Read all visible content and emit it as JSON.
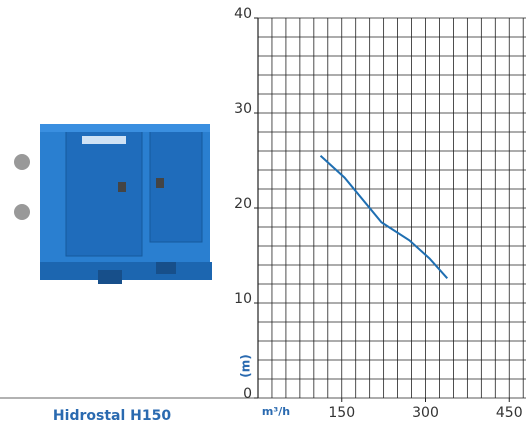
{
  "chart_data": {
    "type": "line",
    "title": "Hidrostal H150",
    "y_label": "(m)",
    "x_label": "m³/h",
    "x": [
      112,
      155,
      221,
      271,
      307,
      339
    ],
    "series": [
      {
        "name": "H150",
        "color": "#1f6fb2",
        "values": [
          25.5,
          23.2,
          18.5,
          16.6,
          14.7,
          12.6
        ]
      }
    ],
    "xlim": [
      0,
      480
    ],
    "ylim": [
      0,
      40
    ],
    "xticks": [
      150,
      300,
      450
    ],
    "yticks": [
      0,
      10,
      20,
      30,
      40
    ],
    "minor_xticks": [
      0,
      25,
      50,
      75,
      100,
      125,
      150,
      175,
      200,
      225,
      250,
      275,
      300,
      325,
      350,
      375,
      400,
      425,
      450,
      475
    ],
    "minor_yticks": [
      0,
      2,
      4,
      6,
      8,
      10,
      12,
      14,
      16,
      18,
      20,
      22,
      24,
      26,
      28,
      30,
      32,
      34,
      36,
      38,
      40
    ],
    "grid": true
  }
}
